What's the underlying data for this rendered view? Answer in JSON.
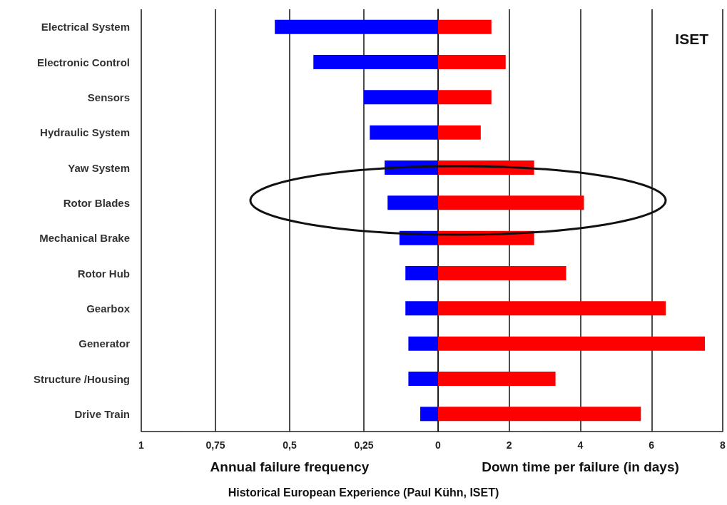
{
  "chart_data": [
    {
      "type": "bar",
      "orientation": "horizontal",
      "categories": [
        "Electrical System",
        "Electronic Control",
        "Sensors",
        "Hydraulic System",
        "Yaw System",
        "Rotor Blades",
        "Mechanical Brake",
        "Rotor Hub",
        "Gearbox",
        "Generator",
        "Structure /Housing",
        "Drive Train"
      ],
      "series": [
        {
          "color": "#0000ff",
          "values": [
            0.55,
            0.42,
            0.25,
            0.23,
            0.18,
            0.17,
            0.13,
            0.11,
            0.11,
            0.1,
            0.1,
            0.06
          ]
        }
      ],
      "xlabel": "Annual failure frequency",
      "xlim": [
        1,
        0
      ],
      "xticks": [
        1,
        {
          "value": 0.75,
          "label": "0,75"
        },
        {
          "value": 0.5,
          "label": "0,5"
        },
        {
          "value": 0.25,
          "label": "0,25"
        },
        0
      ],
      "grid": "x",
      "annotations": [
        "Historical European Experience (Paul Kühn, ISET)"
      ]
    },
    {
      "type": "bar",
      "orientation": "horizontal",
      "categories": [
        null,
        null,
        null,
        null,
        null,
        null,
        null,
        null,
        null,
        null,
        null,
        null
      ],
      "series": [
        {
          "color": "#ff0000",
          "values": [
            1.5,
            1.9,
            1.5,
            1.2,
            2.7,
            4.1,
            2.7,
            3.6,
            6.4,
            7.5,
            3.3,
            5.7
          ]
        }
      ],
      "xlabel": "Down time per failure (in days)",
      "xlim": [
        0,
        8
      ],
      "xticks": [
        {
          "value": 0,
          "label": null
        },
        2,
        4,
        6,
        8
      ],
      "grid": "x",
      "tick_labels": "x",
      "annotations": [
        "ISET"
      ]
    }
  ]
}
